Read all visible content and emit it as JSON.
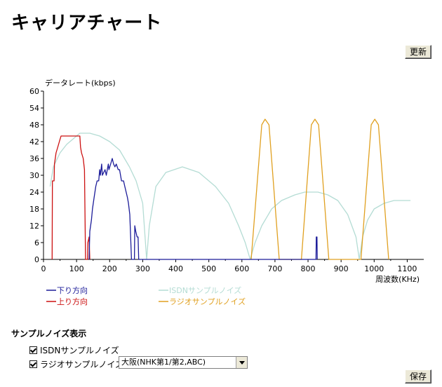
{
  "page": {
    "title": "キャリアチャート"
  },
  "buttons": {
    "refresh": "更新",
    "save": "保存"
  },
  "options": {
    "section_title": "サンプルノイズ表示",
    "isdn_label": "ISDNサンプルノイズ",
    "isdn_checked": true,
    "radio_label": "ラジオサンプルノイズ",
    "radio_checked": true,
    "region_selected": "大阪(NHK第1/第2,ABC)"
  },
  "colors": {
    "down": "#1c1c99",
    "up": "#cc1111",
    "isdn": "#b4dcd4",
    "radio": "#e0a020"
  },
  "chart_data": {
    "type": "line",
    "title": "",
    "ylabel": "データレート(kbps)",
    "xlabel": "周波数(KHz)",
    "xlim": [
      0,
      1150
    ],
    "ylim": [
      0,
      60
    ],
    "x_ticks": [
      0,
      100,
      200,
      300,
      400,
      500,
      600,
      700,
      800,
      900,
      1000,
      1100
    ],
    "y_ticks": [
      0,
      6,
      12,
      18,
      24,
      30,
      36,
      42,
      48,
      54,
      60
    ],
    "legend": [
      {
        "name": "下り方向",
        "color_key": "down"
      },
      {
        "name": "上り方向",
        "color_key": "up"
      },
      {
        "name": "ISDNサンプルノイズ",
        "color_key": "isdn"
      },
      {
        "name": "ラジオサンプルノイズ",
        "color_key": "radio"
      }
    ],
    "series": [
      {
        "name": "上り方向",
        "color_key": "up",
        "points": [
          [
            26,
            0
          ],
          [
            27,
            28
          ],
          [
            32,
            28
          ],
          [
            33,
            34
          ],
          [
            38,
            38
          ],
          [
            43,
            40
          ],
          [
            48,
            42
          ],
          [
            53,
            44
          ],
          [
            60,
            44
          ],
          [
            70,
            44
          ],
          [
            80,
            44
          ],
          [
            90,
            44
          ],
          [
            100,
            44
          ],
          [
            110,
            44
          ],
          [
            112,
            40
          ],
          [
            115,
            38
          ],
          [
            120,
            36
          ],
          [
            124,
            32
          ],
          [
            127,
            0
          ],
          [
            133,
            0
          ],
          [
            134,
            6
          ],
          [
            138,
            8
          ],
          [
            140,
            0
          ]
        ]
      },
      {
        "name": "下り方向",
        "color_key": "down",
        "points": [
          [
            138,
            0
          ],
          [
            140,
            10
          ],
          [
            145,
            14
          ],
          [
            148,
            18
          ],
          [
            153,
            22
          ],
          [
            158,
            26
          ],
          [
            162,
            28
          ],
          [
            167,
            28
          ],
          [
            170,
            32
          ],
          [
            172,
            30
          ],
          [
            176,
            34
          ],
          [
            178,
            30
          ],
          [
            186,
            32
          ],
          [
            190,
            30
          ],
          [
            196,
            34
          ],
          [
            198,
            32
          ],
          [
            203,
            34
          ],
          [
            208,
            36
          ],
          [
            212,
            34
          ],
          [
            216,
            33
          ],
          [
            220,
            34
          ],
          [
            226,
            32
          ],
          [
            230,
            32
          ],
          [
            236,
            28
          ],
          [
            242,
            28
          ],
          [
            246,
            26
          ],
          [
            250,
            24
          ],
          [
            254,
            22
          ],
          [
            257,
            20
          ],
          [
            261,
            16
          ],
          [
            266,
            0
          ],
          [
            275,
            0
          ],
          [
            276,
            12
          ],
          [
            279,
            10
          ],
          [
            283,
            8
          ],
          [
            286,
            8
          ],
          [
            288,
            0
          ],
          [
            824,
            0
          ],
          [
            825,
            8
          ],
          [
            827,
            8
          ],
          [
            828,
            0
          ]
        ]
      },
      {
        "name": "ISDNサンプルノイズ",
        "color_key": "isdn",
        "points": [
          [
            20,
            26
          ],
          [
            30,
            33
          ],
          [
            50,
            38
          ],
          [
            70,
            41
          ],
          [
            90,
            43
          ],
          [
            110,
            45
          ],
          [
            140,
            45
          ],
          [
            170,
            44
          ],
          [
            200,
            42
          ],
          [
            230,
            39
          ],
          [
            260,
            33
          ],
          [
            280,
            28
          ],
          [
            300,
            20
          ],
          [
            312,
            0
          ],
          [
            320,
            12
          ],
          [
            340,
            26
          ],
          [
            370,
            31
          ],
          [
            420,
            33
          ],
          [
            470,
            31
          ],
          [
            520,
            26
          ],
          [
            560,
            20
          ],
          [
            590,
            12
          ],
          [
            610,
            6
          ],
          [
            625,
            0
          ],
          [
            640,
            6
          ],
          [
            660,
            12
          ],
          [
            690,
            18
          ],
          [
            720,
            21
          ],
          [
            760,
            23
          ],
          [
            790,
            24
          ],
          [
            830,
            24
          ],
          [
            860,
            23
          ],
          [
            890,
            21
          ],
          [
            920,
            16
          ],
          [
            945,
            8
          ],
          [
            955,
            0
          ],
          [
            965,
            8
          ],
          [
            980,
            14
          ],
          [
            1000,
            18
          ],
          [
            1030,
            20
          ],
          [
            1060,
            21
          ],
          [
            1110,
            21
          ]
        ]
      },
      {
        "name": "ラジオサンプルノイズ",
        "color_key": "radio",
        "points": [
          [
            628,
            0
          ],
          [
            660,
            48
          ],
          [
            670,
            50
          ],
          [
            682,
            48
          ],
          [
            713,
            0
          ],
          [
            780,
            0
          ],
          [
            810,
            48
          ],
          [
            821,
            50
          ],
          [
            832,
            48
          ],
          [
            863,
            0
          ],
          [
            960,
            0
          ],
          [
            991,
            48
          ],
          [
            1002,
            50
          ],
          [
            1013,
            48
          ],
          [
            1044,
            0
          ]
        ]
      }
    ]
  }
}
